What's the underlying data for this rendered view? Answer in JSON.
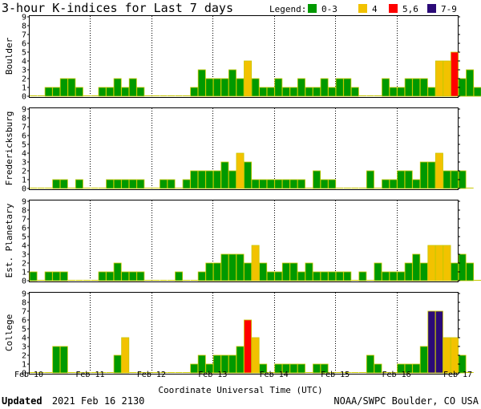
{
  "chart_data": {
    "type": "bar",
    "title": "3-hour K-indices for Last 7 days",
    "legend": {
      "label": "Legend:",
      "items": [
        {
          "label": "0-3",
          "color": "#009900"
        },
        {
          "label": "4",
          "color": "#f2c200"
        },
        {
          "label": "5,6",
          "color": "#ff0000"
        },
        {
          "label": "7-9",
          "color": "#2b0a78"
        }
      ]
    },
    "colors": {
      "outline": "#c8c800",
      "border": "#000000",
      "grid": "#000000"
    },
    "x_axis": {
      "label": "Coordinate Universal Time (UTC)",
      "ticks": [
        "Feb 10",
        "Feb 11",
        "Feb 12",
        "Feb 13",
        "Feb 14",
        "Feb 15",
        "Feb 16",
        "Feb 17"
      ]
    },
    "y_axis": {
      "ticks": [
        "0",
        "1",
        "2",
        "3",
        "4",
        "5",
        "6",
        "7",
        "8",
        "9"
      ],
      "ylim": [
        0,
        9
      ]
    },
    "bins_per_day": 8,
    "grid": "vertical dotted lines at each day",
    "panels": [
      {
        "name": "Boulder",
        "values": [
          0,
          0,
          1,
          1,
          2,
          2,
          1,
          0,
          0,
          1,
          1,
          2,
          1,
          2,
          1,
          0,
          0,
          0,
          0,
          0,
          0,
          1,
          3,
          2,
          2,
          2,
          3,
          2,
          4,
          2,
          1,
          1,
          2,
          1,
          1,
          2,
          1,
          1,
          2,
          1,
          2,
          2,
          1,
          0,
          0,
          0,
          2,
          1,
          1,
          2,
          2,
          2,
          1,
          4,
          4,
          5,
          2,
          3,
          1,
          0
        ]
      },
      {
        "name": "Fredericksburg",
        "values": [
          0,
          0,
          0,
          1,
          1,
          0,
          1,
          0,
          0,
          0,
          1,
          1,
          1,
          1,
          1,
          0,
          0,
          1,
          1,
          0,
          1,
          2,
          2,
          2,
          2,
          3,
          2,
          4,
          3,
          1,
          1,
          1,
          1,
          1,
          1,
          1,
          0,
          2,
          1,
          1,
          0,
          0,
          0,
          0,
          2,
          0,
          1,
          1,
          2,
          2,
          1,
          3,
          3,
          4,
          2,
          2,
          2,
          0
        ]
      },
      {
        "name": "Est. Planetary",
        "values": [
          1,
          0,
          1,
          1,
          1,
          0,
          0,
          0,
          0,
          1,
          1,
          2,
          1,
          1,
          1,
          0,
          0,
          0,
          0,
          1,
          0,
          0,
          1,
          2,
          2,
          3,
          3,
          3,
          2,
          4,
          2,
          1,
          1,
          2,
          2,
          1,
          2,
          1,
          1,
          1,
          1,
          1,
          0,
          1,
          0,
          2,
          1,
          1,
          1,
          2,
          3,
          2,
          4,
          4,
          4,
          2,
          3,
          2,
          0
        ]
      },
      {
        "name": "College",
        "values": [
          0,
          0,
          0,
          3,
          3,
          0,
          0,
          0,
          0,
          0,
          0,
          2,
          4,
          0,
          0,
          0,
          0,
          0,
          0,
          0,
          0,
          1,
          2,
          1,
          2,
          2,
          2,
          3,
          6,
          4,
          1,
          0,
          1,
          1,
          1,
          1,
          0,
          1,
          1,
          0,
          0,
          0,
          0,
          0,
          2,
          1,
          0,
          0,
          1,
          1,
          1,
          3,
          7,
          7,
          4,
          4,
          2,
          0
        ]
      }
    ]
  },
  "footer": {
    "updated_label": "Updated",
    "updated_value": "2021 Feb 16 2130",
    "source": "NOAA/SWPC Boulder, CO USA"
  }
}
